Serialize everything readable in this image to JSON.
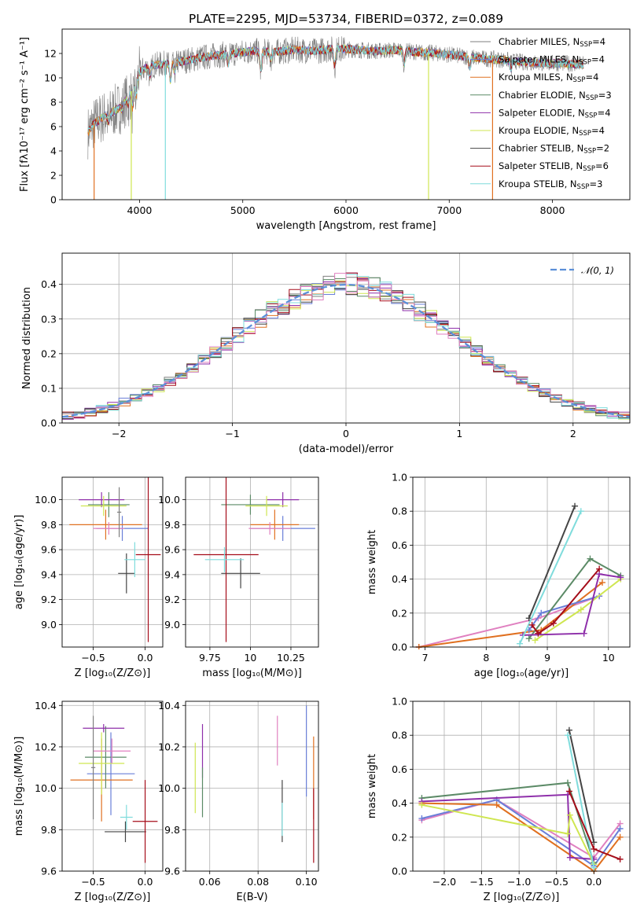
{
  "figure": {
    "title": "PLATE=2295, MJD=53734, FIBERID=0372, z=0.089"
  },
  "colors": {
    "Chabrier MILES": "#7f7f7f",
    "Salpeter MILES": "#6a7fd8",
    "Kroupa MILES": "#e07020",
    "Chabrier ELODIE": "#5b8a66",
    "Salpeter ELODIE": "#8e2faa",
    "Kroupa ELODIE": "#cfe651",
    "Chabrier STELIB": "#444444",
    "Salpeter STELIB": "#a50d1a",
    "Kroupa STELIB": "#7fdcdc",
    "Salpeter MILES alt": "#e080c0"
  },
  "chart_data": [
    {
      "id": "spectrum",
      "type": "line",
      "xlabel": "wavelength [Angstrom, rest frame]",
      "ylabel": "Flux [fλ10⁻¹⁷ erg cm⁻² s⁻¹ A⁻¹]",
      "xlim": [
        3250,
        8750
      ],
      "ylim": [
        0,
        14
      ],
      "xticks": [
        4000,
        5000,
        6000,
        7000,
        8000
      ],
      "yticks": [
        0,
        2,
        4,
        6,
        8,
        10,
        12
      ],
      "grid": false,
      "legend_position": "top-right",
      "legend": [
        {
          "label": "Chabrier MILES, N",
          "sub": "SSP",
          "suffix": "=4",
          "color": "#7f7f7f"
        },
        {
          "label": "Salpeter MILES, N",
          "sub": "SSP",
          "suffix": "=4",
          "color": "#6a7fd8"
        },
        {
          "label": "Kroupa MILES, N",
          "sub": "SSP",
          "suffix": "=4",
          "color": "#e07020"
        },
        {
          "label": "Chabrier ELODIE, N",
          "sub": "SSP",
          "suffix": "=3",
          "color": "#5b8a66"
        },
        {
          "label": "Salpeter ELODIE, N",
          "sub": "SSP",
          "suffix": "=4",
          "color": "#8e2faa"
        },
        {
          "label": "Kroupa ELODIE, N",
          "sub": "SSP",
          "suffix": "=4",
          "color": "#cfe651"
        },
        {
          "label": "Chabrier STELIB, N",
          "sub": "SSP",
          "suffix": "=2",
          "color": "#444444"
        },
        {
          "label": "Salpeter STELIB, N",
          "sub": "SSP",
          "suffix": "=6",
          "color": "#a50d1a"
        },
        {
          "label": "Kroupa STELIB, N",
          "sub": "SSP",
          "suffix": "=3",
          "color": "#7fdcdc"
        }
      ],
      "continuum": {
        "x": [
          3500,
          3550,
          3650,
          3800,
          3900,
          3950,
          4000,
          4100,
          4300,
          4500,
          4700,
          4900,
          5100,
          5300,
          5500,
          5700,
          5900,
          6100,
          6300,
          6500,
          6700,
          6900,
          7100,
          7300,
          7500,
          7700,
          7900,
          8100,
          8300
        ],
        "y": [
          5.5,
          6.2,
          6.8,
          7.5,
          8.5,
          9.5,
          10.5,
          11.0,
          11.2,
          11.5,
          11.8,
          12.0,
          12.2,
          12.1,
          12.3,
          12.2,
          12.4,
          12.3,
          12.2,
          12.3,
          12.1,
          12.0,
          11.8,
          11.6,
          11.5,
          11.3,
          11.2,
          11.2,
          11.1
        ]
      }
    },
    {
      "id": "residuals",
      "type": "histogram",
      "xlabel": "(data-model)/error",
      "ylabel": "Normed distribution",
      "xlim": [
        -2.5,
        2.5
      ],
      "ylim": [
        0,
        0.49
      ],
      "xticks": [
        -2,
        -1,
        0,
        1,
        2
      ],
      "yticks": [
        0.0,
        0.1,
        0.2,
        0.3,
        0.4
      ],
      "grid": true,
      "legend_position": "top-right",
      "legend": [
        {
          "label": "𝒩(0, 1)",
          "color": "#5b8fd8",
          "style": "dashed"
        }
      ],
      "gaussian": {
        "mu": 0,
        "sigma": 1
      },
      "bin_width": 0.1
    },
    {
      "id": "age-vs-Z",
      "type": "scatter",
      "xlabel": "Z [log₁₀(Z/Z⊙)]",
      "ylabel": "age  [log₁₀(age/yr)]",
      "xlim": [
        -0.8,
        0.17
      ],
      "ylim": [
        8.82,
        10.18
      ],
      "xticks": [
        -0.5,
        0.0
      ],
      "yticks": [
        9.0,
        9.2,
        9.4,
        9.6,
        9.8,
        10.0
      ],
      "grid": true,
      "points": [
        {
          "x": -0.22,
          "y": 9.77,
          "ex": 0.25,
          "ey": 0.1,
          "color": "#6a7fd8"
        },
        {
          "x": -0.38,
          "y": 9.8,
          "ex": 0.35,
          "ey": 0.12,
          "color": "#e07020"
        },
        {
          "x": -0.35,
          "y": 9.96,
          "ex": 0.2,
          "ey": 0.1,
          "color": "#5b8a66"
        },
        {
          "x": -0.42,
          "y": 10.0,
          "ex": 0.22,
          "ey": 0.06,
          "color": "#8e2faa"
        },
        {
          "x": -0.4,
          "y": 9.95,
          "ex": 0.22,
          "ey": 0.08,
          "color": "#cfe651"
        },
        {
          "x": -0.18,
          "y": 9.41,
          "ex": 0.08,
          "ey": 0.16,
          "color": "#444444"
        },
        {
          "x": 0.03,
          "y": 9.56,
          "ex": 0.12,
          "ey": 0.7,
          "color": "#a50d1a"
        },
        {
          "x": -0.1,
          "y": 9.52,
          "ex": 0.1,
          "ey": 0.14,
          "color": "#7fdcdc"
        },
        {
          "x": -0.35,
          "y": 9.77,
          "ex": 0.15,
          "ey": 0.05,
          "color": "#e080c0"
        },
        {
          "x": -0.25,
          "y": 9.9,
          "ex": 0.02,
          "ey": 0.2,
          "color": "#7f7f7f"
        }
      ]
    },
    {
      "id": "age-vs-mass",
      "type": "scatter",
      "xlabel": "mass [log₁₀(M/M⊙)]",
      "ylabel": "",
      "xlim": [
        9.6,
        10.42
      ],
      "ylim": [
        8.82,
        10.18
      ],
      "xticks": [
        9.75,
        10.0,
        10.25
      ],
      "yticks": [
        9.0,
        9.2,
        9.4,
        9.6,
        9.8,
        10.0
      ],
      "yticklabels": true,
      "grid": true,
      "points": [
        {
          "x": 10.2,
          "y": 9.77,
          "ex": 0.2,
          "ey": 0.1,
          "color": "#6a7fd8"
        },
        {
          "x": 10.15,
          "y": 9.8,
          "ex": 0.15,
          "ey": 0.12,
          "color": "#e07020"
        },
        {
          "x": 10.0,
          "y": 9.96,
          "ex": 0.18,
          "ey": 0.08,
          "color": "#5b8a66"
        },
        {
          "x": 10.2,
          "y": 10.0,
          "ex": 0.1,
          "ey": 0.06,
          "color": "#8e2faa"
        },
        {
          "x": 10.1,
          "y": 9.95,
          "ex": 0.13,
          "ey": 0.08,
          "color": "#cfe651"
        },
        {
          "x": 9.94,
          "y": 9.41,
          "ex": 0.12,
          "ey": 0.12,
          "color": "#444444"
        },
        {
          "x": 9.85,
          "y": 9.56,
          "ex": 0.2,
          "ey": 0.7,
          "color": "#a50d1a"
        },
        {
          "x": 9.84,
          "y": 9.52,
          "ex": 0.12,
          "ey": 0.1,
          "color": "#7fdcdc"
        },
        {
          "x": 10.12,
          "y": 9.77,
          "ex": 0.13,
          "ey": 0.05,
          "color": "#e080c0"
        }
      ]
    },
    {
      "id": "weight-vs-age",
      "type": "line",
      "xlabel": "age  [log₁₀(age/yr)]",
      "ylabel": "mass weight",
      "xlim": [
        6.8,
        10.35
      ],
      "ylim": [
        0,
        1.0
      ],
      "xticks": [
        7,
        8,
        9,
        10
      ],
      "yticks": [
        0.0,
        0.2,
        0.4,
        0.6,
        0.8,
        1.0
      ],
      "grid": true,
      "series": [
        {
          "color": "#e080c0",
          "x": [
            6.9,
            8.85,
            9.85
          ],
          "y": [
            0.0,
            0.17,
            0.3
          ]
        },
        {
          "color": "#e07020",
          "x": [
            6.9,
            8.9,
            9.9
          ],
          "y": [
            0.0,
            0.1,
            0.38
          ]
        },
        {
          "color": "#6a7fd8",
          "x": [
            8.7,
            8.9,
            9.85
          ],
          "y": [
            0.1,
            0.2,
            0.3
          ]
        },
        {
          "color": "#5b8a66",
          "x": [
            8.7,
            9.7,
            10.2
          ],
          "y": [
            0.05,
            0.52,
            0.42
          ]
        },
        {
          "color": "#cfe651",
          "x": [
            8.8,
            9.55,
            10.2
          ],
          "y": [
            0.04,
            0.22,
            0.4
          ]
        },
        {
          "color": "#8e2faa",
          "x": [
            8.6,
            9.6,
            9.85,
            10.2
          ],
          "y": [
            0.07,
            0.08,
            0.43,
            0.41
          ]
        },
        {
          "color": "#444444",
          "x": [
            8.7,
            9.45
          ],
          "y": [
            0.17,
            0.83
          ]
        },
        {
          "color": "#7fdcdc",
          "x": [
            8.55,
            9.55
          ],
          "y": [
            0.02,
            0.8
          ]
        },
        {
          "color": "#a50d1a",
          "x": [
            8.75,
            8.85,
            9.1,
            9.85
          ],
          "y": [
            0.13,
            0.08,
            0.14,
            0.46
          ]
        }
      ]
    },
    {
      "id": "mass-vs-Z",
      "type": "scatter",
      "xlabel": "Z [log₁₀(Z/Z⊙)]",
      "ylabel": "mass [log₁₀(M/M⊙)]",
      "xlim": [
        -0.8,
        0.17
      ],
      "ylim": [
        9.6,
        10.42
      ],
      "xticks": [
        -0.5,
        0.0
      ],
      "yticks": [
        9.6,
        9.8,
        10.0,
        10.2,
        10.4
      ],
      "grid": true,
      "points": [
        {
          "x": -0.33,
          "y": 10.07,
          "ex": 0.23,
          "ey": 0.2,
          "color": "#6a7fd8"
        },
        {
          "x": -0.42,
          "y": 10.04,
          "ex": 0.3,
          "ey": 0.2,
          "color": "#e07020"
        },
        {
          "x": -0.38,
          "y": 10.15,
          "ex": 0.2,
          "ey": 0.15,
          "color": "#5b8a66"
        },
        {
          "x": -0.4,
          "y": 10.29,
          "ex": 0.2,
          "ey": 0.02,
          "color": "#8e2faa"
        },
        {
          "x": -0.42,
          "y": 10.12,
          "ex": 0.22,
          "ey": 0.15,
          "color": "#cfe651"
        },
        {
          "x": -0.19,
          "y": 9.79,
          "ex": 0.2,
          "ey": 0.05,
          "color": "#444444"
        },
        {
          "x": 0.0,
          "y": 9.84,
          "ex": 0.12,
          "ey": 0.2,
          "color": "#a50d1a"
        },
        {
          "x": -0.18,
          "y": 9.86,
          "ex": 0.06,
          "ey": 0.06,
          "color": "#7fdcdc"
        },
        {
          "x": -0.32,
          "y": 10.18,
          "ex": 0.18,
          "ey": 0.06,
          "color": "#e080c0"
        },
        {
          "x": -0.5,
          "y": 10.1,
          "ex": 0.02,
          "ey": 0.25,
          "color": "#7f7f7f"
        }
      ]
    },
    {
      "id": "mass-vs-EBV",
      "type": "scatter",
      "xlabel": "E(B-V)",
      "ylabel": "",
      "xlim": [
        0.05,
        0.105
      ],
      "ylim": [
        9.6,
        10.42
      ],
      "xticks": [
        0.06,
        0.08,
        0.1
      ],
      "yticks": [
        9.6,
        9.8,
        10.0,
        10.2,
        10.4
      ],
      "grid": true,
      "points": [
        {
          "x": 0.054,
          "y": 10.05,
          "ex": 0.0,
          "ey": 0.17,
          "color": "#cfe651"
        },
        {
          "x": 0.057,
          "y": 10.18,
          "ex": 0.0,
          "ey": 0.13,
          "color": "#8e2faa"
        },
        {
          "x": 0.057,
          "y": 9.98,
          "ex": 0.0,
          "ey": 0.12,
          "color": "#5b8a66"
        },
        {
          "x": 0.088,
          "y": 10.23,
          "ex": 0.0,
          "ey": 0.12,
          "color": "#e080c0"
        },
        {
          "x": 0.09,
          "y": 9.89,
          "ex": 0.0,
          "ey": 0.15,
          "color": "#444444"
        },
        {
          "x": 0.09,
          "y": 9.85,
          "ex": 0.0,
          "ey": 0.08,
          "color": "#7fdcdc"
        },
        {
          "x": 0.1,
          "y": 10.18,
          "ex": 0.0,
          "ey": 0.22,
          "color": "#6a7fd8"
        },
        {
          "x": 0.103,
          "y": 10.05,
          "ex": 0.0,
          "ey": 0.2,
          "color": "#e07020"
        },
        {
          "x": 0.103,
          "y": 9.82,
          "ex": 0.0,
          "ey": 0.18,
          "color": "#a50d1a"
        }
      ]
    },
    {
      "id": "weight-vs-Z",
      "type": "line",
      "xlabel": "Z [log₁₀(Z/Z⊙)]",
      "ylabel": "mass weight",
      "xlim": [
        -2.42,
        0.48
      ],
      "ylim": [
        0,
        1.0
      ],
      "xticks": [
        -2.0,
        -1.5,
        -1.0,
        -0.5,
        0.0
      ],
      "yticks": [
        0.0,
        0.2,
        0.4,
        0.6,
        0.8,
        1.0
      ],
      "grid": true,
      "series": [
        {
          "color": "#e080c0",
          "x": [
            -2.3,
            -1.3,
            0.0,
            0.35
          ],
          "y": [
            0.3,
            0.42,
            0.08,
            0.28
          ]
        },
        {
          "color": "#6a7fd8",
          "x": [
            -2.3,
            -1.3,
            0.0,
            0.35
          ],
          "y": [
            0.31,
            0.42,
            0.03,
            0.25
          ]
        },
        {
          "color": "#e07020",
          "x": [
            -2.3,
            -1.3,
            0.0,
            0.35
          ],
          "y": [
            0.4,
            0.39,
            0.0,
            0.2
          ]
        },
        {
          "color": "#5b8a66",
          "x": [
            -2.3,
            -0.35,
            0.0
          ],
          "y": [
            0.43,
            0.52,
            0.05
          ]
        },
        {
          "color": "#8e2faa",
          "x": [
            -2.3,
            -0.35,
            -0.32,
            0.0
          ],
          "y": [
            0.41,
            0.45,
            0.08,
            0.07
          ]
        },
        {
          "color": "#cfe651",
          "x": [
            -2.3,
            -0.35,
            -0.32,
            0.0
          ],
          "y": [
            0.39,
            0.22,
            0.33,
            0.04
          ]
        },
        {
          "color": "#444444",
          "x": [
            -0.33,
            0.0
          ],
          "y": [
            0.83,
            0.17
          ]
        },
        {
          "color": "#7fdcdc",
          "x": [
            -0.35,
            0.0
          ],
          "y": [
            0.8,
            0.02
          ]
        },
        {
          "color": "#a50d1a",
          "x": [
            -0.33,
            0.0,
            0.35
          ],
          "y": [
            0.47,
            0.13,
            0.07
          ]
        }
      ]
    }
  ]
}
